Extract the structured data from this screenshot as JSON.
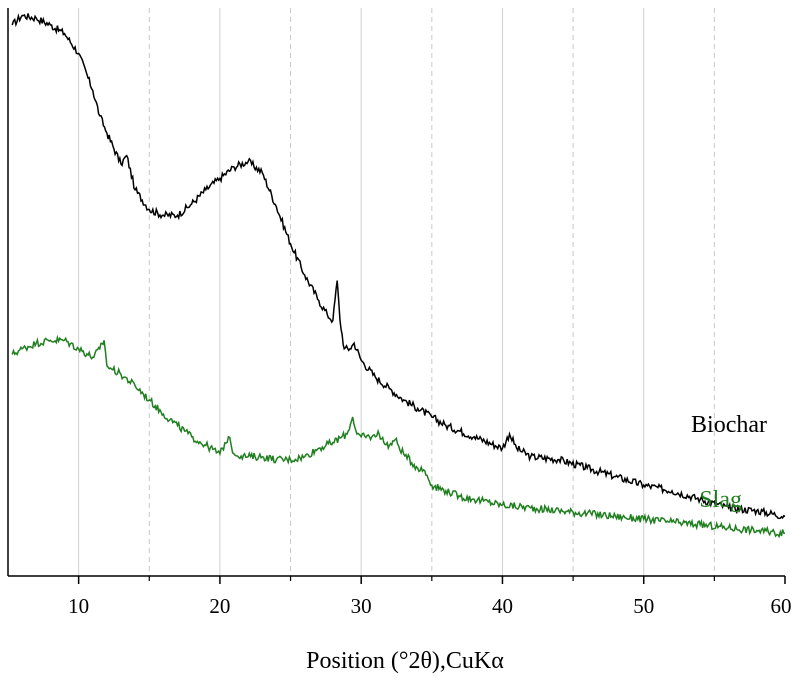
{
  "chart_data": {
    "type": "line",
    "title": "",
    "xlabel": "Position (°2θ),CuKα",
    "ylabel": "",
    "xlim": [
      5,
      60
    ],
    "ylim": [
      0,
      100
    ],
    "x_major_ticks": [
      10,
      20,
      30,
      40,
      50,
      60
    ],
    "x_major_tick_labels": [
      "10",
      "20",
      "30",
      "40",
      "50",
      "60"
    ],
    "x_minor_gridlines": [
      15,
      25,
      35,
      45,
      55
    ],
    "grid": "vertical",
    "series": [
      {
        "name": "Biochar",
        "label": "Biochar",
        "color": "#000000",
        "x": [
          5.3,
          6,
          7,
          8,
          9,
          10,
          11,
          11.5,
          12,
          13,
          13.4,
          14,
          15,
          16,
          17,
          18,
          19,
          20,
          21,
          22,
          23,
          24,
          25,
          26,
          27,
          27.6,
          28,
          28.3,
          28.5,
          28.8,
          29.2,
          29.5,
          30,
          31,
          32,
          33,
          34,
          35,
          36,
          38,
          40,
          40.5,
          41,
          42,
          44,
          46,
          48,
          50,
          52,
          54,
          56,
          58,
          60
        ],
        "y": [
          97,
          98.7,
          98.2,
          97,
          95.5,
          92,
          85.5,
          81,
          78,
          72.5,
          74,
          68,
          64.5,
          63.5,
          63.5,
          65.5,
          68,
          70,
          72,
          73,
          71,
          65,
          58.5,
          53,
          48.5,
          46,
          45,
          52,
          45,
          40,
          40,
          41,
          38,
          35,
          33,
          31,
          29.5,
          28,
          26.5,
          24.5,
          22.5,
          25,
          22.5,
          21,
          20.5,
          19,
          17.5,
          16,
          15,
          13.5,
          12,
          11.5,
          10.5
        ]
      },
      {
        "name": "Slag",
        "label": "Slag",
        "color": "#1f7f1f",
        "x": [
          5.3,
          6,
          7,
          8,
          9,
          10,
          11,
          11.5,
          11.8,
          12,
          13,
          14,
          15,
          16,
          17,
          18,
          19,
          20,
          20.6,
          20.8,
          21,
          22,
          23,
          24,
          25,
          26,
          27,
          28,
          29,
          29.4,
          29.7,
          30,
          31,
          31.2,
          31.6,
          32,
          32.4,
          33,
          34,
          34.5,
          35,
          36,
          37,
          38,
          40,
          42,
          44,
          46,
          48,
          50,
          52,
          54,
          56,
          58,
          60
        ],
        "y": [
          39,
          40,
          41,
          41.5,
          41.5,
          40,
          38.5,
          40,
          41.5,
          37,
          35.5,
          33.5,
          31,
          28.5,
          26.5,
          24.5,
          23,
          21.5,
          24.5,
          23,
          21.5,
          21,
          21,
          20.5,
          20.5,
          21,
          22.5,
          23.5,
          25,
          28,
          25,
          24.5,
          24.5,
          25.5,
          23.5,
          23,
          24,
          21.5,
          19,
          18.5,
          16,
          15,
          14,
          13.5,
          12.5,
          12,
          11.5,
          11,
          10.5,
          10,
          9.5,
          9,
          8.5,
          8,
          7.5
        ]
      }
    ]
  }
}
